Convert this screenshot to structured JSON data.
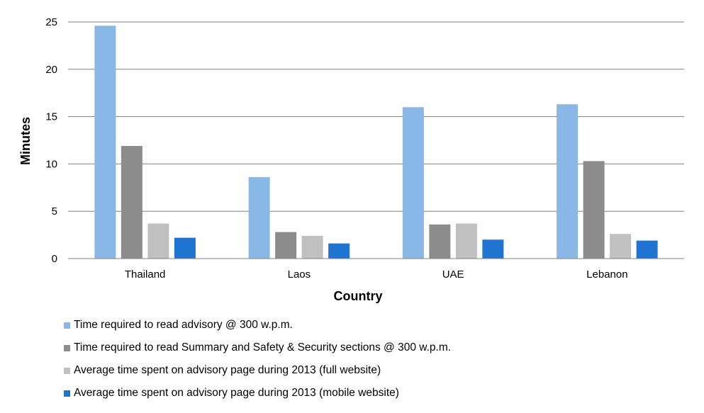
{
  "chart_data": {
    "type": "bar",
    "title": "",
    "xlabel": "Country",
    "ylabel": "Minutes",
    "ylim": [
      0,
      25
    ],
    "yticks": [
      0,
      5,
      10,
      15,
      20,
      25
    ],
    "grid": true,
    "legend_position": "bottom",
    "categories": [
      "Thailand",
      "Laos",
      "UAE",
      "Lebanon"
    ],
    "series": [
      {
        "name": "Time required to read advisory @ 300 w.p.m.",
        "color": "#8ab8e6",
        "values": [
          24.6,
          8.6,
          16.0,
          16.3
        ]
      },
      {
        "name": "Time required to read Summary and Safety & Security sections @ 300 w.p.m.",
        "color": "#8c8c8c",
        "values": [
          11.9,
          2.8,
          3.6,
          10.3
        ]
      },
      {
        "name": "Average time spent on advisory page during 2013 (full website)",
        "color": "#c0c0c0",
        "values": [
          3.7,
          2.4,
          3.7,
          2.6
        ]
      },
      {
        "name": "Average time spent on advisory page during 2013 (mobile website)",
        "color": "#1f74d1",
        "values": [
          2.2,
          1.6,
          2.0,
          1.9
        ]
      }
    ]
  }
}
